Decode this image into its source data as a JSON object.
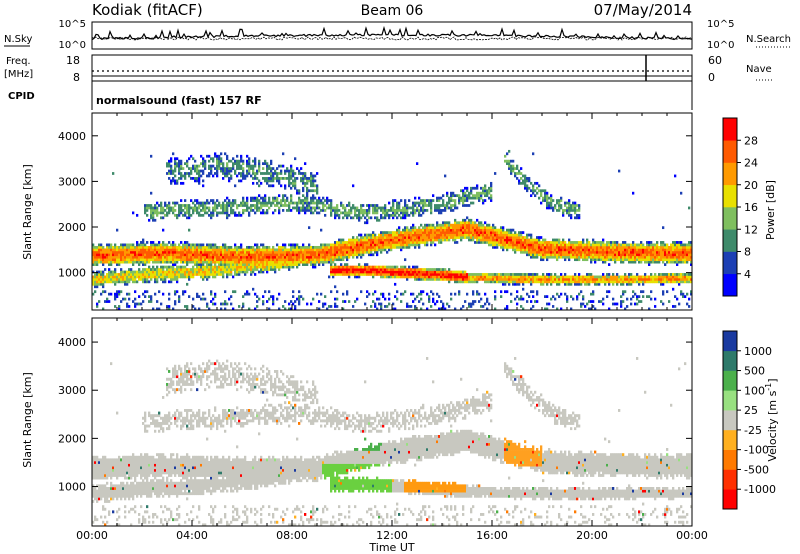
{
  "header": {
    "station": "Kodiak (fitACF)",
    "beam": "Beam 06",
    "date": "07/May/2014"
  },
  "status_panels": {
    "nsky_label": "N.Sky",
    "nsearch_label": "N.Search",
    "noise_ticks_left": [
      "10^5",
      "10^0"
    ],
    "noise_ticks_right": [
      "10^5",
      "10^0"
    ],
    "freq_label_line1": "Freq.",
    "freq_label_line2": "[MHz]",
    "freq_ticks": [
      "18",
      "8"
    ],
    "nave_label": "Nave",
    "nave_ticks": [
      "60",
      "0"
    ],
    "cpid_label": "CPID",
    "cpid_value": "normalsound (fast) 157 RF"
  },
  "chart_data": [
    {
      "type": "heatmap",
      "name": "power",
      "ylabel": "Slant Range [km]",
      "yticks": [
        "1000",
        "2000",
        "3000",
        "4000"
      ],
      "ylim": [
        180,
        4500
      ],
      "xlabel": "Time UT",
      "xticks": [
        "00:00",
        "04:00",
        "08:00",
        "12:00",
        "16:00",
        "20:00",
        "00:00"
      ],
      "xlim_hours": [
        0,
        24
      ],
      "colorbar_label": "Power [dB]",
      "colorbar_ticks": [
        "4",
        "8",
        "12",
        "16",
        "20",
        "24",
        "28"
      ],
      "colorbar_colors": [
        "#0000ff",
        "#1c3fb4",
        "#3e8a6a",
        "#7fbf5f",
        "#e8e000",
        "#ff9a00",
        "#ff5a00",
        "#ff0000"
      ],
      "bands": [
        {
          "desc": "near-range band",
          "t": [
            0,
            3,
            6,
            9,
            12,
            15,
            18,
            21,
            24
          ],
          "r": [
            1380,
            1430,
            1350,
            1380,
            1720,
            1950,
            1520,
            1450,
            1420
          ],
          "width": 260,
          "strength": 0.85
        },
        {
          "desc": "lower descending band",
          "t": [
            0,
            2,
            5,
            8,
            9.5
          ],
          "r": [
            850,
            950,
            1050,
            1250,
            1500
          ],
          "width": 200,
          "strength": 0.6
        },
        {
          "desc": "strong midday band",
          "t": [
            9.5,
            11,
            12.5,
            14,
            15
          ],
          "r": [
            1050,
            1050,
            1000,
            950,
            900
          ],
          "width": 150,
          "strength": 1.0
        },
        {
          "desc": "afternoon lower band",
          "t": [
            15,
            18,
            21,
            24
          ],
          "r": [
            900,
            850,
            850,
            880
          ],
          "width": 130,
          "strength": 0.75
        },
        {
          "desc": "upper scatter",
          "t": [
            2,
            5,
            8,
            11,
            14,
            16
          ],
          "r": [
            2350,
            2400,
            2550,
            2300,
            2500,
            2800
          ],
          "width": 220,
          "strength": 0.35
        },
        {
          "desc": "far scatter",
          "t": [
            3,
            5,
            7,
            9
          ],
          "r": [
            3200,
            3350,
            3200,
            2900
          ],
          "width": 300,
          "strength": 0.3
        },
        {
          "desc": "late afternoon descending",
          "t": [
            16.5,
            17.5,
            18.5,
            19.5
          ],
          "r": [
            3500,
            2900,
            2500,
            2350
          ],
          "width": 200,
          "strength": 0.35
        }
      ]
    },
    {
      "type": "heatmap",
      "name": "velocity",
      "ylabel": "Slant Range [km]",
      "yticks": [
        "1000",
        "2000",
        "3000",
        "4000"
      ],
      "ylim": [
        180,
        4500
      ],
      "xlabel": "Time UT",
      "xticks": [
        "00:00",
        "04:00",
        "08:00",
        "12:00",
        "16:00",
        "20:00",
        "00:00"
      ],
      "xlim_hours": [
        0,
        24
      ],
      "colorbar_label": "Velocity [m s",
      "colorbar_label_sup": "-1",
      "colorbar_label_end": "]",
      "colorbar_ticks": [
        "1000",
        "500",
        "100",
        "25",
        "-25",
        "-100",
        "-500",
        "-1000"
      ],
      "colorbar_colors": [
        "#1a3aa0",
        "#2e7a6a",
        "#4bb04b",
        "#98e080",
        "#c8c8c0",
        "#ffb020",
        "#ff7a00",
        "#ff3000",
        "#ff0000"
      ]
    }
  ]
}
